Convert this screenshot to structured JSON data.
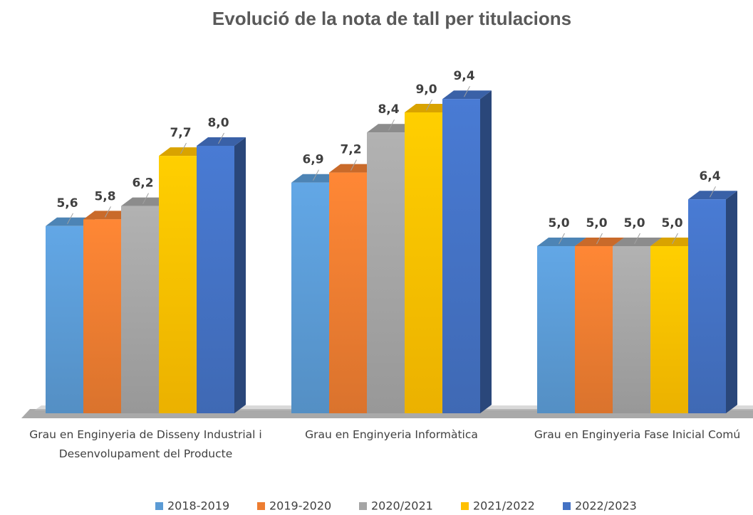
{
  "chart_data": {
    "type": "bar3d",
    "title": "Evolució de la nota de tall per titulacions",
    "categories": [
      "Grau en Enginyeria de Disseny Industrial i Desenvolupament del Producte",
      "Grau en Enginyeria Informàtica",
      "Grau en Enginyeria Fase Inicial Comú"
    ],
    "series": [
      {
        "name": "2018-2019",
        "color": "#5b9bd5",
        "values": [
          5.6,
          6.9,
          5.0
        ],
        "value_labels": [
          "5,6",
          "6,9",
          "5,0"
        ]
      },
      {
        "name": "2019-2020",
        "color": "#ed7d31",
        "values": [
          5.8,
          7.2,
          5.0
        ],
        "value_labels": [
          "5,8",
          "7,2",
          "5,0"
        ]
      },
      {
        "name": "2020/2021",
        "color": "#a5a5a5",
        "values": [
          6.2,
          8.4,
          5.0
        ],
        "value_labels": [
          "6,2",
          "8,4",
          "5,0"
        ]
      },
      {
        "name": "2021/2022",
        "color": "#ffc000",
        "values": [
          7.7,
          9.0,
          5.0
        ],
        "value_labels": [
          "7,7",
          "9,0",
          "5,0"
        ]
      },
      {
        "name": "2022/2023",
        "color": "#4472c4",
        "values": [
          8.0,
          9.4,
          6.4
        ],
        "value_labels": [
          "8,0",
          "9,4",
          "6,4"
        ]
      }
    ],
    "ylim": [
      0,
      10
    ],
    "legend": "bottom"
  }
}
